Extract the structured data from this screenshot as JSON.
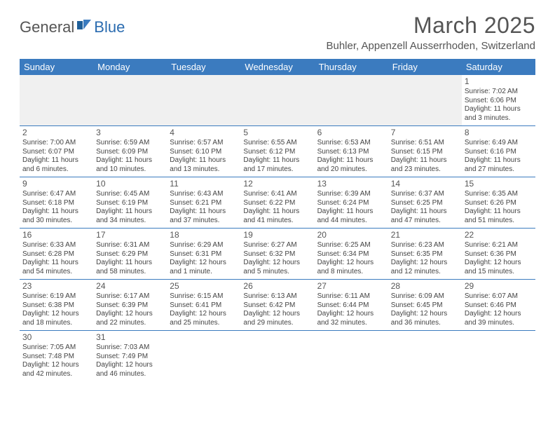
{
  "logo": {
    "text1": "General",
    "text2": "Blue"
  },
  "title": "March 2025",
  "location": "Buhler, Appenzell Ausserrhoden, Switzerland",
  "colors": {
    "header_bg": "#3b7bbf",
    "header_fg": "#ffffff",
    "rule": "#3b7bbf",
    "blank_bg": "#f0f0f0",
    "text": "#444444",
    "title_text": "#555555"
  },
  "weekdays": [
    "Sunday",
    "Monday",
    "Tuesday",
    "Wednesday",
    "Thursday",
    "Friday",
    "Saturday"
  ],
  "weeks": [
    [
      null,
      null,
      null,
      null,
      null,
      null,
      {
        "n": "1",
        "sr": "Sunrise: 7:02 AM",
        "ss": "Sunset: 6:06 PM",
        "dl": "Daylight: 11 hours and 3 minutes."
      }
    ],
    [
      {
        "n": "2",
        "sr": "Sunrise: 7:00 AM",
        "ss": "Sunset: 6:07 PM",
        "dl": "Daylight: 11 hours and 6 minutes."
      },
      {
        "n": "3",
        "sr": "Sunrise: 6:59 AM",
        "ss": "Sunset: 6:09 PM",
        "dl": "Daylight: 11 hours and 10 minutes."
      },
      {
        "n": "4",
        "sr": "Sunrise: 6:57 AM",
        "ss": "Sunset: 6:10 PM",
        "dl": "Daylight: 11 hours and 13 minutes."
      },
      {
        "n": "5",
        "sr": "Sunrise: 6:55 AM",
        "ss": "Sunset: 6:12 PM",
        "dl": "Daylight: 11 hours and 17 minutes."
      },
      {
        "n": "6",
        "sr": "Sunrise: 6:53 AM",
        "ss": "Sunset: 6:13 PM",
        "dl": "Daylight: 11 hours and 20 minutes."
      },
      {
        "n": "7",
        "sr": "Sunrise: 6:51 AM",
        "ss": "Sunset: 6:15 PM",
        "dl": "Daylight: 11 hours and 23 minutes."
      },
      {
        "n": "8",
        "sr": "Sunrise: 6:49 AM",
        "ss": "Sunset: 6:16 PM",
        "dl": "Daylight: 11 hours and 27 minutes."
      }
    ],
    [
      {
        "n": "9",
        "sr": "Sunrise: 6:47 AM",
        "ss": "Sunset: 6:18 PM",
        "dl": "Daylight: 11 hours and 30 minutes."
      },
      {
        "n": "10",
        "sr": "Sunrise: 6:45 AM",
        "ss": "Sunset: 6:19 PM",
        "dl": "Daylight: 11 hours and 34 minutes."
      },
      {
        "n": "11",
        "sr": "Sunrise: 6:43 AM",
        "ss": "Sunset: 6:21 PM",
        "dl": "Daylight: 11 hours and 37 minutes."
      },
      {
        "n": "12",
        "sr": "Sunrise: 6:41 AM",
        "ss": "Sunset: 6:22 PM",
        "dl": "Daylight: 11 hours and 41 minutes."
      },
      {
        "n": "13",
        "sr": "Sunrise: 6:39 AM",
        "ss": "Sunset: 6:24 PM",
        "dl": "Daylight: 11 hours and 44 minutes."
      },
      {
        "n": "14",
        "sr": "Sunrise: 6:37 AM",
        "ss": "Sunset: 6:25 PM",
        "dl": "Daylight: 11 hours and 47 minutes."
      },
      {
        "n": "15",
        "sr": "Sunrise: 6:35 AM",
        "ss": "Sunset: 6:26 PM",
        "dl": "Daylight: 11 hours and 51 minutes."
      }
    ],
    [
      {
        "n": "16",
        "sr": "Sunrise: 6:33 AM",
        "ss": "Sunset: 6:28 PM",
        "dl": "Daylight: 11 hours and 54 minutes."
      },
      {
        "n": "17",
        "sr": "Sunrise: 6:31 AM",
        "ss": "Sunset: 6:29 PM",
        "dl": "Daylight: 11 hours and 58 minutes."
      },
      {
        "n": "18",
        "sr": "Sunrise: 6:29 AM",
        "ss": "Sunset: 6:31 PM",
        "dl": "Daylight: 12 hours and 1 minute."
      },
      {
        "n": "19",
        "sr": "Sunrise: 6:27 AM",
        "ss": "Sunset: 6:32 PM",
        "dl": "Daylight: 12 hours and 5 minutes."
      },
      {
        "n": "20",
        "sr": "Sunrise: 6:25 AM",
        "ss": "Sunset: 6:34 PM",
        "dl": "Daylight: 12 hours and 8 minutes."
      },
      {
        "n": "21",
        "sr": "Sunrise: 6:23 AM",
        "ss": "Sunset: 6:35 PM",
        "dl": "Daylight: 12 hours and 12 minutes."
      },
      {
        "n": "22",
        "sr": "Sunrise: 6:21 AM",
        "ss": "Sunset: 6:36 PM",
        "dl": "Daylight: 12 hours and 15 minutes."
      }
    ],
    [
      {
        "n": "23",
        "sr": "Sunrise: 6:19 AM",
        "ss": "Sunset: 6:38 PM",
        "dl": "Daylight: 12 hours and 18 minutes."
      },
      {
        "n": "24",
        "sr": "Sunrise: 6:17 AM",
        "ss": "Sunset: 6:39 PM",
        "dl": "Daylight: 12 hours and 22 minutes."
      },
      {
        "n": "25",
        "sr": "Sunrise: 6:15 AM",
        "ss": "Sunset: 6:41 PM",
        "dl": "Daylight: 12 hours and 25 minutes."
      },
      {
        "n": "26",
        "sr": "Sunrise: 6:13 AM",
        "ss": "Sunset: 6:42 PM",
        "dl": "Daylight: 12 hours and 29 minutes."
      },
      {
        "n": "27",
        "sr": "Sunrise: 6:11 AM",
        "ss": "Sunset: 6:44 PM",
        "dl": "Daylight: 12 hours and 32 minutes."
      },
      {
        "n": "28",
        "sr": "Sunrise: 6:09 AM",
        "ss": "Sunset: 6:45 PM",
        "dl": "Daylight: 12 hours and 36 minutes."
      },
      {
        "n": "29",
        "sr": "Sunrise: 6:07 AM",
        "ss": "Sunset: 6:46 PM",
        "dl": "Daylight: 12 hours and 39 minutes."
      }
    ],
    [
      {
        "n": "30",
        "sr": "Sunrise: 7:05 AM",
        "ss": "Sunset: 7:48 PM",
        "dl": "Daylight: 12 hours and 42 minutes."
      },
      {
        "n": "31",
        "sr": "Sunrise: 7:03 AM",
        "ss": "Sunset: 7:49 PM",
        "dl": "Daylight: 12 hours and 46 minutes."
      },
      null,
      null,
      null,
      null,
      null
    ]
  ]
}
